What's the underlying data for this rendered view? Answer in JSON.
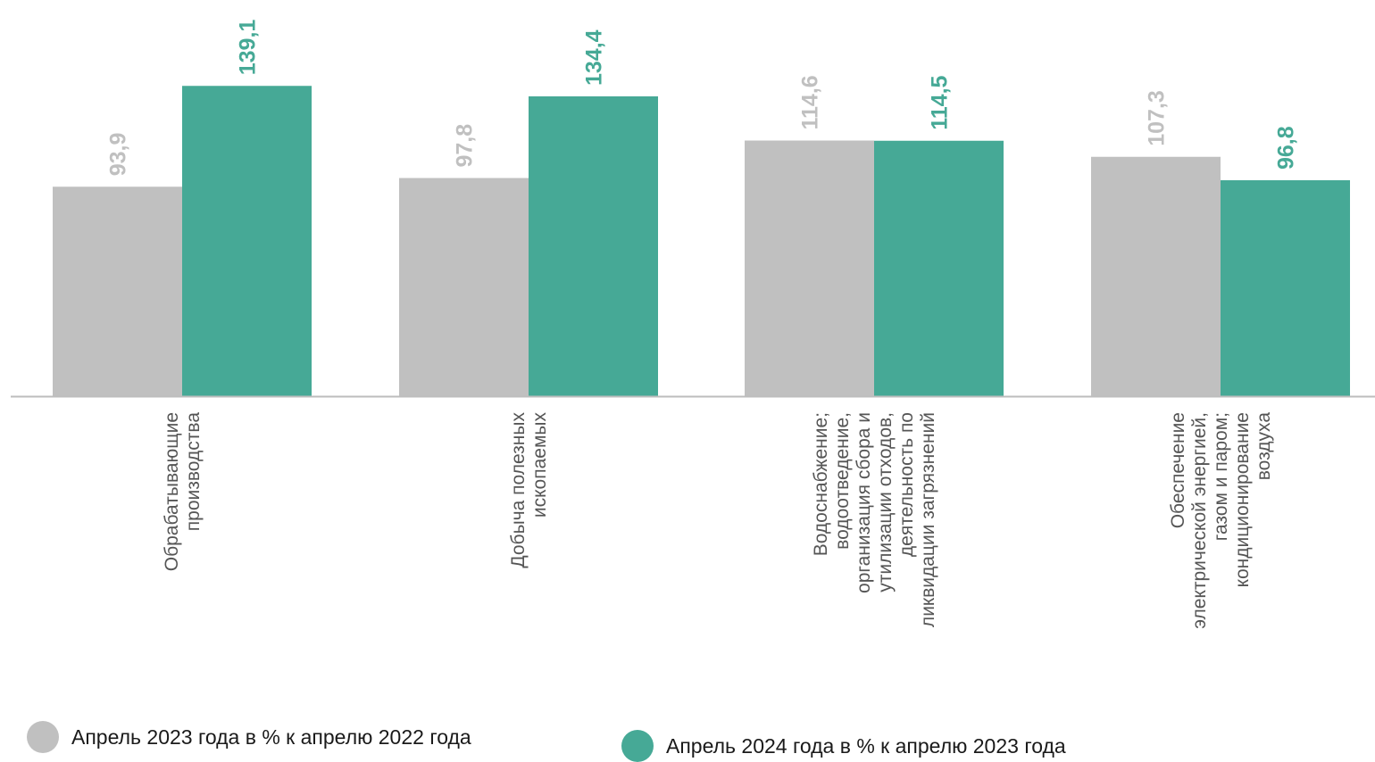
{
  "chart_data": {
    "type": "bar",
    "title": "",
    "xlabel": "",
    "ylabel": "",
    "ylim": [
      0,
      140
    ],
    "grid": false,
    "legend_position": "bottom",
    "categories": [
      [
        "Обрабатывающие",
        "производства"
      ],
      [
        "Добыча полезных",
        "ископаемых"
      ],
      [
        "Водоснабжение;",
        "водоотведение,",
        "организация сбора и",
        "утилизации отходов,",
        "деятельность по",
        "ликвидации загрязнений"
      ],
      [
        "Обеспечение",
        "электрической энергией,",
        "газом и паром;",
        "кондиционирование",
        "воздуха"
      ]
    ],
    "series": [
      {
        "name": "Апрель 2023 года в % к апрелю 2022 года",
        "color": "#c0c0c0",
        "values": [
          93.9,
          97.8,
          114.6,
          107.3
        ],
        "labels": [
          "93,9",
          "97,8",
          "114,6",
          "107,3"
        ]
      },
      {
        "name": "Апрель 2024 года в % к апрелю 2023 года",
        "color": "#46a996",
        "values": [
          139.1,
          134.4,
          114.5,
          96.8
        ],
        "labels": [
          "139,1",
          "134,4",
          "114,5",
          "96,8"
        ]
      }
    ],
    "axis_color": "#bdbdbd",
    "category_label_color": "#555555"
  }
}
